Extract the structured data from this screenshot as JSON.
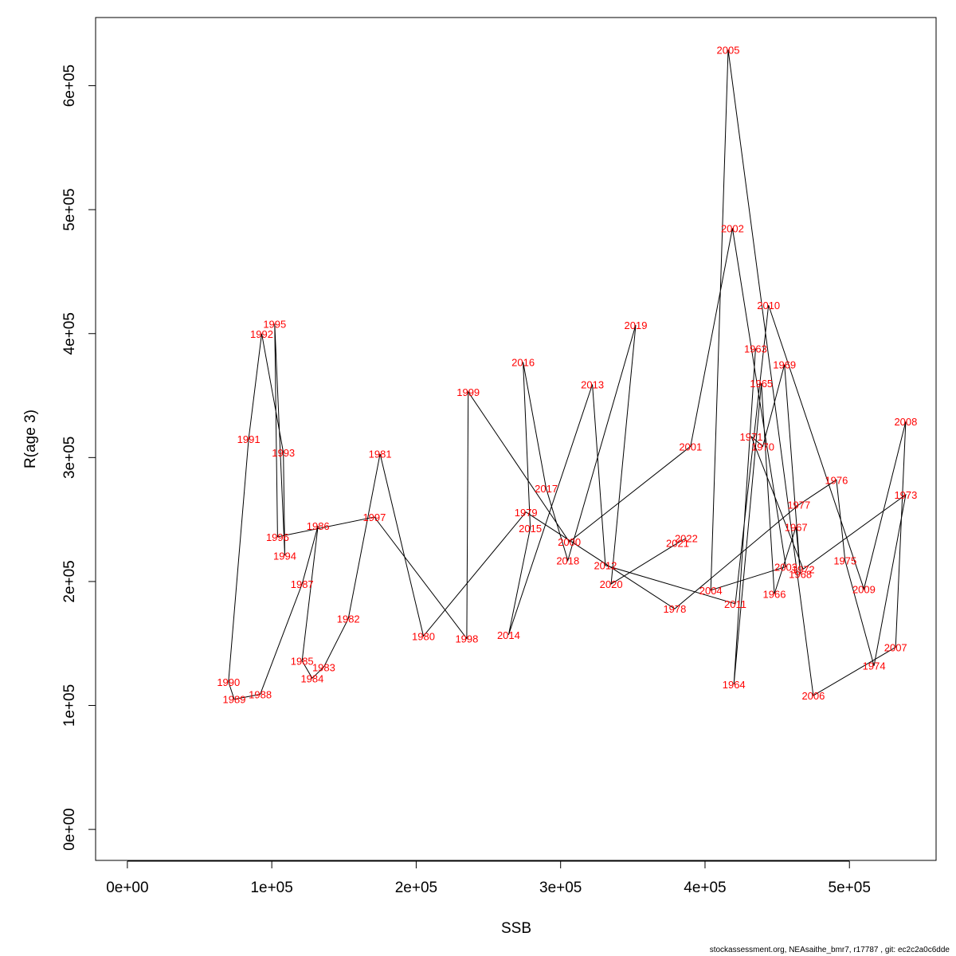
{
  "chart_data": {
    "type": "scatter",
    "xlabel": "SSB",
    "ylabel": "R(age 3)",
    "xlim": [
      -22000,
      560000
    ],
    "ylim": [
      -25000,
      655000
    ],
    "x_ticks": [
      0,
      100000,
      200000,
      300000,
      400000,
      500000
    ],
    "x_tick_labels": [
      "0e+00",
      "1e+05",
      "2e+05",
      "3e+05",
      "4e+05",
      "5e+05"
    ],
    "y_ticks": [
      0,
      100000,
      200000,
      300000,
      400000,
      500000,
      600000
    ],
    "y_tick_labels": [
      "0e+00",
      "1e+05",
      "2e+05",
      "3e+05",
      "4e+05",
      "5e+05",
      "6e+05"
    ],
    "connect_points": true,
    "line_color": "#000000",
    "label_color": "#ff0000",
    "points": [
      {
        "year": "1963",
        "x": 435000,
        "y": 388000
      },
      {
        "year": "1964",
        "x": 420000,
        "y": 117000
      },
      {
        "year": "1965",
        "x": 439000,
        "y": 360000
      },
      {
        "year": "1966",
        "x": 448000,
        "y": 190000
      },
      {
        "year": "1967",
        "x": 463000,
        "y": 244000
      },
      {
        "year": "1968",
        "x": 466000,
        "y": 206000
      },
      {
        "year": "1969",
        "x": 455000,
        "y": 375000
      },
      {
        "year": "1970",
        "x": 440000,
        "y": 309000
      },
      {
        "year": "1971",
        "x": 432000,
        "y": 317000
      },
      {
        "year": "1972",
        "x": 468000,
        "y": 210000
      },
      {
        "year": "1973",
        "x": 539000,
        "y": 270000
      },
      {
        "year": "1974",
        "x": 517000,
        "y": 132000
      },
      {
        "year": "1975",
        "x": 497000,
        "y": 217000
      },
      {
        "year": "1976",
        "x": 491000,
        "y": 282000
      },
      {
        "year": "1977",
        "x": 465000,
        "y": 262000
      },
      {
        "year": "1978",
        "x": 379000,
        "y": 178000
      },
      {
        "year": "1979",
        "x": 276000,
        "y": 256000
      },
      {
        "year": "1980",
        "x": 205000,
        "y": 156000
      },
      {
        "year": "1981",
        "x": 175000,
        "y": 303000
      },
      {
        "year": "1982",
        "x": 153000,
        "y": 170000
      },
      {
        "year": "1983",
        "x": 136000,
        "y": 131000
      },
      {
        "year": "1984",
        "x": 128000,
        "y": 122000
      },
      {
        "year": "1985",
        "x": 121000,
        "y": 136000
      },
      {
        "year": "1986",
        "x": 132000,
        "y": 245000
      },
      {
        "year": "1987",
        "x": 121000,
        "y": 198000
      },
      {
        "year": "1988",
        "x": 92000,
        "y": 109000
      },
      {
        "year": "1989",
        "x": 74000,
        "y": 105000
      },
      {
        "year": "1990",
        "x": 70000,
        "y": 119000
      },
      {
        "year": "1991",
        "x": 84000,
        "y": 315000
      },
      {
        "year": "1992",
        "x": 93000,
        "y": 400000
      },
      {
        "year": "1993",
        "x": 108000,
        "y": 304000
      },
      {
        "year": "1994",
        "x": 109000,
        "y": 221000
      },
      {
        "year": "1995",
        "x": 102000,
        "y": 408000
      },
      {
        "year": "1996",
        "x": 104000,
        "y": 236000
      },
      {
        "year": "1997",
        "x": 171000,
        "y": 252000
      },
      {
        "year": "1998",
        "x": 235000,
        "y": 154000
      },
      {
        "year": "1999",
        "x": 236000,
        "y": 353000
      },
      {
        "year": "2000",
        "x": 306000,
        "y": 232000
      },
      {
        "year": "2001",
        "x": 390000,
        "y": 309000
      },
      {
        "year": "2002",
        "x": 419000,
        "y": 485000
      },
      {
        "year": "2003",
        "x": 456000,
        "y": 212000
      },
      {
        "year": "2004",
        "x": 404000,
        "y": 193000
      },
      {
        "year": "2005",
        "x": 416000,
        "y": 629000
      },
      {
        "year": "2006",
        "x": 475000,
        "y": 108000
      },
      {
        "year": "2007",
        "x": 532000,
        "y": 147000
      },
      {
        "year": "2008",
        "x": 539000,
        "y": 329000
      },
      {
        "year": "2009",
        "x": 510000,
        "y": 194000
      },
      {
        "year": "2010",
        "x": 444000,
        "y": 423000
      },
      {
        "year": "2011",
        "x": 421000,
        "y": 182000
      },
      {
        "year": "2012",
        "x": 331000,
        "y": 213000
      },
      {
        "year": "2013",
        "x": 322000,
        "y": 359000
      },
      {
        "year": "2014",
        "x": 264000,
        "y": 157000
      },
      {
        "year": "2015",
        "x": 279000,
        "y": 243000
      },
      {
        "year": "2016",
        "x": 274000,
        "y": 377000
      },
      {
        "year": "2017",
        "x": 290000,
        "y": 275000
      },
      {
        "year": "2018",
        "x": 305000,
        "y": 217000
      },
      {
        "year": "2019",
        "x": 352000,
        "y": 407000
      },
      {
        "year": "2020",
        "x": 335000,
        "y": 198000
      },
      {
        "year": "2021",
        "x": 381000,
        "y": 231000
      },
      {
        "year": "2022",
        "x": 387000,
        "y": 235000
      }
    ]
  },
  "footer_text": "stockassessment.org, NEAsaithe_bmr7, r17787 , git: ec2c2a0c6dde"
}
